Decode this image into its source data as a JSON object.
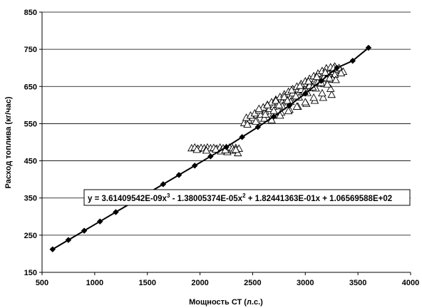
{
  "chart_data": {
    "type": "scatter",
    "title": "",
    "xlabel": "Мощность СТ (л.с.)",
    "ylabel": "Расход топлива (кг/час)",
    "xlim": [
      500,
      4000
    ],
    "ylim": [
      150,
      850
    ],
    "x_ticks": [
      500,
      1000,
      1500,
      2000,
      2500,
      3000,
      3500,
      4000
    ],
    "y_ticks": [
      150,
      250,
      350,
      450,
      550,
      650,
      750,
      850
    ],
    "grid": "horizontal",
    "legend": "none",
    "equation": {
      "prefix": "y = 3.61409542E-09x",
      "sup1": "3",
      "mid1": " - 1.38005374E-05x",
      "sup2": "2",
      "rest": " + 1.82441363E-01x + 1.06569588E+02"
    },
    "series": [
      {
        "name": "",
        "marker": "diamond",
        "line": true,
        "color": "#000000",
        "x": [
          600,
          750,
          900,
          1050,
          1200,
          1350,
          1500,
          1650,
          1800,
          1950,
          2100,
          2250,
          2400,
          2550,
          2700,
          2850,
          3000,
          3150,
          3300,
          3450,
          3600
        ],
        "y": [
          212,
          237,
          262,
          287,
          312,
          337,
          362,
          387,
          412,
          437,
          462,
          487,
          514,
          541,
          569,
          599,
          631,
          665,
          700,
          719,
          754
        ]
      },
      {
        "name": "",
        "marker": "triangle",
        "line": false,
        "color": "#000000",
        "x": [
          1920,
          1950,
          1980,
          2010,
          2040,
          2070,
          2100,
          2130,
          2160,
          2190,
          2220,
          2250,
          2280,
          2310,
          2340,
          2370,
          2200,
          2260,
          2320,
          2360,
          1970,
          2060,
          2150,
          2240,
          2340,
          2420,
          2460,
          2500,
          2540,
          2580,
          2620,
          2660,
          2700,
          2740,
          2780,
          2820,
          2860,
          2900,
          2940,
          2980,
          3020,
          3060,
          3100,
          3140,
          3180,
          3220,
          3260,
          3300,
          3340,
          2440,
          2480,
          2520,
          2560,
          2600,
          2640,
          2680,
          2720,
          2760,
          2800,
          2840,
          2880,
          2920,
          2960,
          3000,
          3040,
          3080,
          3120,
          3160,
          3200,
          3240,
          3280,
          3320,
          3360,
          2450,
          2530,
          2610,
          2690,
          2770,
          2850,
          2930,
          3010,
          3090,
          3170,
          3250,
          2560,
          2640,
          2720,
          2800,
          2880,
          2960,
          3040,
          3120,
          3200,
          3280,
          3340,
          2620,
          2700,
          2780,
          2860,
          2940,
          3020,
          3100,
          3180,
          3260,
          2680,
          2760,
          2840,
          2920,
          3000,
          3080,
          3160,
          3240,
          2750,
          2830,
          2910,
          2990,
          3070,
          3150,
          3230,
          2870,
          2950,
          3030,
          3110,
          3190,
          3270,
          3210,
          3290
        ],
        "y": [
          484,
          486,
          483,
          485,
          484,
          486,
          484,
          485,
          483,
          486,
          484,
          485,
          486,
          484,
          485,
          483,
          476,
          474,
          478,
          471,
          480,
          478,
          481,
          479,
          480,
          552,
          560,
          566,
          558,
          575,
          583,
          590,
          596,
          602,
          608,
          614,
          620,
          626,
          632,
          640,
          646,
          652,
          660,
          668,
          676,
          684,
          690,
          696,
          692,
          566,
          572,
          578,
          586,
          594,
          601,
          608,
          615,
          622,
          629,
          636,
          643,
          650,
          657,
          664,
          671,
          678,
          685,
          692,
          699,
          702,
          704,
          700,
          690,
          548,
          556,
          564,
          572,
          580,
          588,
          596,
          604,
          612,
          620,
          628,
          590,
          600,
          612,
          622,
          632,
          642,
          652,
          662,
          672,
          682,
          686,
          575,
          585,
          597,
          609,
          621,
          633,
          645,
          657,
          669,
          560,
          572,
          584,
          596,
          608,
          620,
          632,
          644,
          600,
          612,
          624,
          636,
          648,
          660,
          672,
          640,
          652,
          664,
          676,
          688,
          700,
          656,
          668
        ]
      }
    ]
  }
}
